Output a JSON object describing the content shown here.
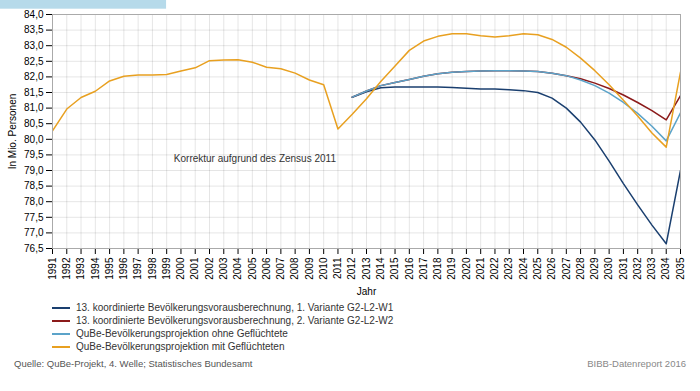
{
  "chart_data": {
    "type": "line",
    "xlabel": "Jahr",
    "ylabel": "In Mio. Personen",
    "x": [
      1991,
      1992,
      1993,
      1994,
      1995,
      1996,
      1997,
      1998,
      1999,
      2000,
      2001,
      2002,
      2003,
      2004,
      2005,
      2006,
      2007,
      2008,
      2009,
      2010,
      2011,
      2012,
      2013,
      2014,
      2015,
      2016,
      2017,
      2018,
      2019,
      2020,
      2021,
      2022,
      2023,
      2024,
      2025,
      2026,
      2027,
      2028,
      2029,
      2030,
      2031,
      2032,
      2033,
      2034,
      2035
    ],
    "series": [
      {
        "name": "13. koordinierte Bevölkerungsvorausberechnung, 1. Variante G2-L2-W1",
        "color": "#1a3f6f",
        "values": [
          null,
          null,
          null,
          null,
          null,
          null,
          null,
          null,
          null,
          null,
          null,
          null,
          null,
          null,
          null,
          null,
          null,
          null,
          null,
          null,
          null,
          81.35,
          81.52,
          81.65,
          81.68,
          81.68,
          81.68,
          81.68,
          81.66,
          81.64,
          81.61,
          81.61,
          81.59,
          81.56,
          81.5,
          81.32,
          81.0,
          80.55,
          79.98,
          79.3,
          78.58,
          77.9,
          77.25,
          76.65,
          79.0
        ]
      },
      {
        "name": "13. koordinierte Bevölkerungsvorausberechnung, 2. Variante G2-L2-W2",
        "color": "#8b1a1a",
        "values": [
          null,
          null,
          null,
          null,
          null,
          null,
          null,
          null,
          null,
          null,
          null,
          null,
          null,
          null,
          null,
          null,
          null,
          null,
          null,
          null,
          null,
          81.35,
          81.55,
          81.72,
          81.82,
          81.92,
          82.02,
          82.1,
          82.15,
          82.17,
          82.19,
          82.2,
          82.2,
          82.19,
          82.17,
          82.12,
          82.04,
          81.94,
          81.8,
          81.63,
          81.42,
          81.18,
          80.92,
          80.62,
          81.4
        ]
      },
      {
        "name": "QuBe-Bevölkerungsprojektion ohne Geflüchtete",
        "color": "#5ba3c9",
        "values": [
          null,
          null,
          null,
          null,
          null,
          null,
          null,
          null,
          null,
          null,
          null,
          null,
          null,
          null,
          null,
          null,
          null,
          null,
          null,
          null,
          null,
          81.35,
          81.55,
          81.72,
          81.82,
          81.92,
          82.02,
          82.1,
          82.15,
          82.17,
          82.19,
          82.2,
          82.2,
          82.19,
          82.17,
          82.12,
          82.04,
          81.9,
          81.72,
          81.48,
          81.18,
          80.83,
          80.42,
          79.95,
          80.85
        ]
      },
      {
        "name": "QuBe-Bevölkerungsprojektion mit Geflüchteten",
        "color": "#e8a020",
        "values": [
          80.27,
          80.97,
          81.34,
          81.54,
          81.87,
          82.02,
          82.06,
          82.06,
          82.08,
          82.19,
          82.29,
          82.52,
          82.54,
          82.55,
          82.47,
          82.31,
          82.26,
          82.12,
          81.9,
          81.75,
          80.33,
          80.8,
          81.3,
          81.85,
          82.35,
          82.85,
          83.15,
          83.3,
          83.38,
          83.38,
          83.32,
          83.28,
          83.32,
          83.38,
          83.35,
          83.2,
          82.95,
          82.6,
          82.2,
          81.75,
          81.25,
          80.75,
          80.2,
          79.75,
          82.15
        ]
      }
    ],
    "xlim": [
      1991,
      2035
    ],
    "xticks": [
      1991,
      1992,
      1993,
      1994,
      1995,
      1996,
      1997,
      1998,
      1999,
      2000,
      2001,
      2002,
      2003,
      2004,
      2005,
      2006,
      2007,
      2008,
      2009,
      2010,
      2011,
      2012,
      2013,
      2014,
      2015,
      2016,
      2017,
      2018,
      2019,
      2020,
      2021,
      2022,
      2023,
      2024,
      2025,
      2026,
      2027,
      2028,
      2029,
      2030,
      2031,
      2032,
      2033,
      2034,
      2035
    ],
    "ylim": [
      76.5,
      84.0
    ],
    "yticks": [
      {
        "value": 76.5,
        "label": "76,5"
      },
      {
        "value": 77.0,
        "label": "77,0"
      },
      {
        "value": 77.5,
        "label": "77,5"
      },
      {
        "value": 78.0,
        "label": "78,0"
      },
      {
        "value": 78.5,
        "label": "78,5"
      },
      {
        "value": 79.0,
        "label": "79,0"
      },
      {
        "value": 79.5,
        "label": "79,5"
      },
      {
        "value": 80.0,
        "label": "80,0"
      },
      {
        "value": 80.5,
        "label": "80,5"
      },
      {
        "value": 81.0,
        "label": "81,0"
      },
      {
        "value": 81.5,
        "label": "81,5"
      },
      {
        "value": 82.0,
        "label": "82,0"
      },
      {
        "value": 82.5,
        "label": "82,5"
      },
      {
        "value": 83.0,
        "label": "83,0"
      },
      {
        "value": 83.5,
        "label": "83,5"
      },
      {
        "value": 84.0,
        "label": "84,0"
      }
    ],
    "grid": true,
    "legend": "bottom",
    "annotations": [
      {
        "text": "Korrektur aufgrund des Zensus 2011",
        "x": 1999.5,
        "y": 79.38,
        "color": "#aed6e8"
      }
    ],
    "source": "Quelle: QuBe-Projekt, 4. Welle; Statistisches Bundesamt",
    "note": "BIBB-Datenreport 2016"
  }
}
